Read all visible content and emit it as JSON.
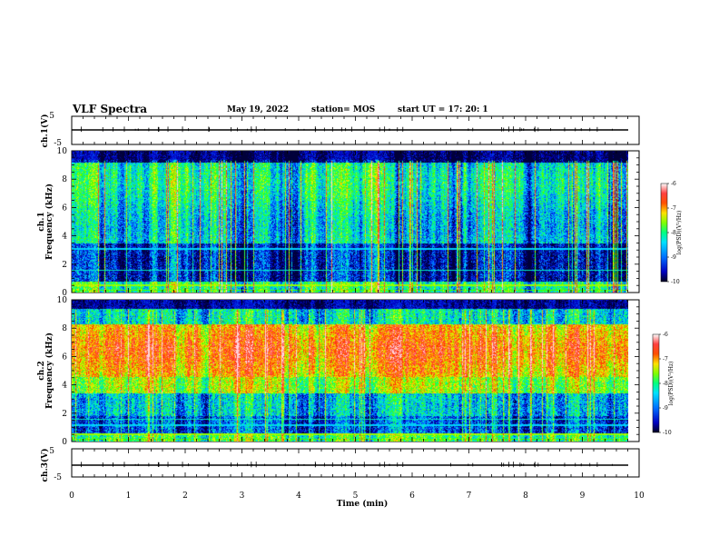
{
  "header": {
    "title": "VLF Spectra",
    "date": "May 19, 2022",
    "station": "station= MOS",
    "start": "start  UT =   17: 20: 1"
  },
  "chart_data": [
    {
      "type": "line",
      "name_label": "ch.1(V)",
      "ylabel": "ch.1(V)",
      "ylim": [
        -5,
        5
      ],
      "yticks": [
        "5",
        "-5"
      ],
      "baseline_value": 0,
      "color": "#000000"
    },
    {
      "type": "heatmap",
      "ylabel": "ch.1\nFrequency (kHz)",
      "ylabel_line1": "ch.1",
      "ylabel_line2": "Frequency (kHz)",
      "xlabel": "Time (min)",
      "xlim": [
        0,
        10
      ],
      "ylim": [
        0,
        10
      ],
      "yticks": [
        "0",
        "2",
        "4",
        "6",
        "8",
        "10"
      ],
      "data_xmax": 9.83,
      "colorbar": {
        "label": "log(PSD)(V²/Hz)",
        "range": [
          -10,
          -6
        ],
        "ticks": [
          "-6",
          "-7",
          "-8",
          "-9",
          "-10"
        ]
      }
    },
    {
      "type": "heatmap",
      "ylabel": "ch.2\nFrequency (kHz)",
      "ylabel_line1": "ch.2",
      "ylabel_line2": "Frequency (kHz)",
      "xlabel": "Time (min)",
      "xlim": [
        0,
        10
      ],
      "ylim": [
        0,
        10
      ],
      "yticks": [
        "0",
        "2",
        "4",
        "6",
        "8",
        "10"
      ],
      "data_xmax": 9.83,
      "colorbar": {
        "label": "log(PSD)(V²/Hz)",
        "range": [
          -10,
          -6
        ],
        "ticks": [
          "-6",
          "-7",
          "-8",
          "-9",
          "-10"
        ]
      }
    },
    {
      "type": "line",
      "ylabel": "ch.3(V)",
      "ylim": [
        -5,
        5
      ],
      "yticks": [
        "5",
        "-5"
      ],
      "baseline_value": 0,
      "color": "#000000",
      "xlabel": "Time (min)",
      "xlim": [
        0,
        10
      ],
      "xticks": [
        "0",
        "1",
        "2",
        "3",
        "4",
        "5",
        "6",
        "7",
        "8",
        "9",
        "10"
      ]
    }
  ],
  "colormap": [
    "#00003a",
    "#0000c8",
    "#0060ff",
    "#00d0ff",
    "#00ff90",
    "#40ff00",
    "#e0ff00",
    "#ffb000",
    "#ff3000",
    "#ff6060",
    "#ffd8e0"
  ]
}
